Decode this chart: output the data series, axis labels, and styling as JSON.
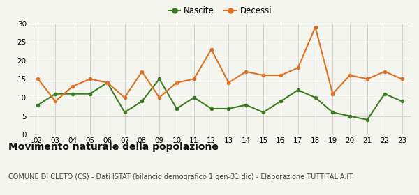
{
  "years": [
    "02",
    "03",
    "04",
    "05",
    "06",
    "07",
    "08",
    "09",
    "10",
    "11",
    "12",
    "13",
    "14",
    "15",
    "16",
    "17",
    "18",
    "19",
    "20",
    "21",
    "22",
    "23"
  ],
  "nascite": [
    8,
    11,
    11,
    11,
    14,
    6,
    9,
    15,
    7,
    10,
    7,
    7,
    8,
    6,
    9,
    12,
    10,
    6,
    5,
    4,
    11,
    9
  ],
  "decessi": [
    15,
    9,
    13,
    15,
    14,
    10,
    17,
    10,
    14,
    15,
    23,
    14,
    17,
    16,
    16,
    18,
    29,
    11,
    16,
    15,
    17,
    15
  ],
  "nascite_color": "#3a7d1e",
  "decessi_color": "#e07020",
  "background_color": "#f5f5f0",
  "grid_color": "#cccccc",
  "ylim": [
    0,
    30
  ],
  "yticks": [
    0,
    5,
    10,
    15,
    20,
    25,
    30
  ],
  "title": "Movimento naturale della popolazione",
  "subtitle": "COMUNE DI CLETO (CS) - Dati ISTAT (bilancio demografico 1 gen-31 dic) - Elaborazione TUTTITALIA.IT",
  "legend_nascite": "Nascite",
  "legend_decessi": "Decessi",
  "title_fontsize": 10,
  "subtitle_fontsize": 7,
  "marker_size": 4,
  "linewidth": 1.5
}
